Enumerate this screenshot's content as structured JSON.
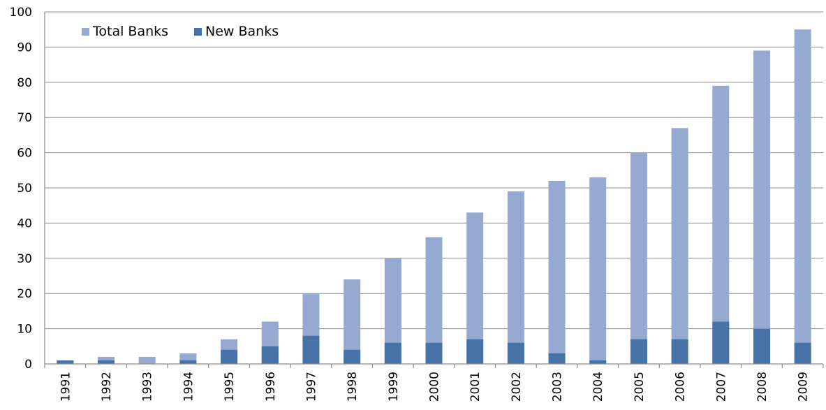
{
  "chart_data": {
    "type": "bar",
    "stacked": true,
    "title": "",
    "xlabel": "",
    "ylabel": "",
    "ylim": [
      0,
      100
    ],
    "yticks": [
      0,
      10,
      20,
      30,
      40,
      50,
      60,
      70,
      80,
      90,
      100
    ],
    "grid": true,
    "legend_position": "top-left",
    "categories": [
      "1991",
      "1992",
      "1993",
      "1994",
      "1995",
      "1996",
      "1997",
      "1998",
      "1999",
      "2000",
      "2001",
      "2002",
      "2003",
      "2004",
      "2005",
      "2006",
      "2007",
      "2008",
      "2009"
    ],
    "series": [
      {
        "name": "Total Banks",
        "color": "#95a9d1",
        "values": [
          1,
          2,
          2,
          3,
          7,
          12,
          20,
          24,
          30,
          36,
          43,
          49,
          52,
          53,
          60,
          67,
          79,
          89,
          95
        ]
      },
      {
        "name": "New Banks",
        "color": "#4672a8",
        "values": [
          1,
          1,
          0,
          1,
          4,
          5,
          8,
          4,
          6,
          6,
          7,
          6,
          3,
          1,
          7,
          7,
          12,
          10,
          6
        ]
      }
    ]
  }
}
